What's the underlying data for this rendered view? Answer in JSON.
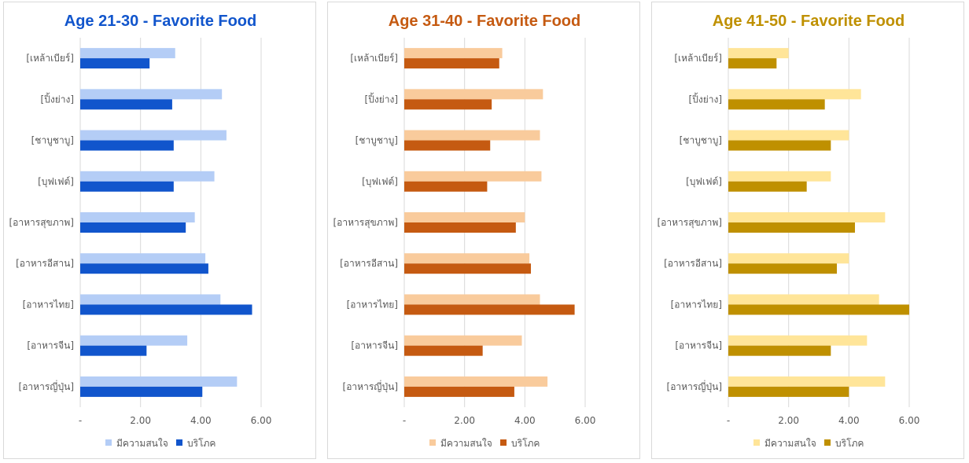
{
  "charts": [
    {
      "chart_data": {
        "type": "bar",
        "orientation": "horizontal",
        "title": "Age 21-30 - Favorite Food",
        "categories": [
          "[เหล้าเบียร์]",
          "[ปิ้งย่าง]",
          "[ชาบูชาบู]",
          "[บุฟเฟต์]",
          "[อาหารสุขภาพ]",
          "[อาหารอีสาน]",
          "[อาหารไทย]",
          "[อาหารจีน]",
          "[อาหารญี่ปุ่น]"
        ],
        "series": [
          {
            "name": "มีความสนใจ",
            "color": "#b4cdf6",
            "values": [
              3.15,
              4.7,
              4.85,
              4.45,
              3.8,
              4.15,
              4.65,
              3.55,
              5.2
            ]
          },
          {
            "name": "บริโภค",
            "color": "#1155cc",
            "values": [
              2.3,
              3.05,
              3.1,
              3.1,
              3.5,
              4.25,
              5.7,
              2.2,
              4.05
            ]
          }
        ],
        "xlim": [
          0,
          6
        ],
        "ticks": [
          "-",
          "2.00",
          "4.00",
          "6.00"
        ],
        "grid": true,
        "legend": "bottom"
      },
      "title_color": "#1155cc"
    },
    {
      "chart_data": {
        "type": "bar",
        "orientation": "horizontal",
        "title": "Age 31-40 - Favorite Food",
        "categories": [
          "[เหล้าเบียร์]",
          "[ปิ้งย่าง]",
          "[ชาบูชาบู]",
          "[บุฟเฟต์]",
          "[อาหารสุขภาพ]",
          "[อาหารอีสาน]",
          "[อาหารไทย]",
          "[อาหารจีน]",
          "[อาหารญี่ปุ่น]"
        ],
        "series": [
          {
            "name": "มีความสนใจ",
            "color": "#f9cb9c",
            "values": [
              3.25,
              4.6,
              4.5,
              4.55,
              4.0,
              4.15,
              4.5,
              3.9,
              4.75
            ]
          },
          {
            "name": "บริโภค",
            "color": "#c55a11",
            "values": [
              3.15,
              2.9,
              2.85,
              2.75,
              3.7,
              4.2,
              5.65,
              2.6,
              3.65
            ]
          }
        ],
        "xlim": [
          0,
          6
        ],
        "ticks": [
          "-",
          "2.00",
          "4.00",
          "6.00"
        ],
        "grid": true,
        "legend": "bottom"
      },
      "title_color": "#c55a11"
    },
    {
      "chart_data": {
        "type": "bar",
        "orientation": "horizontal",
        "title": "Age 41-50 - Favorite Food",
        "categories": [
          "[เหล้าเบียร์]",
          "[ปิ้งย่าง]",
          "[ชาบูชาบู]",
          "[บุฟเฟต์]",
          "[อาหารสุขภาพ]",
          "[อาหารอีสาน]",
          "[อาหารไทย]",
          "[อาหารจีน]",
          "[อาหารญี่ปุ่น]"
        ],
        "series": [
          {
            "name": "มีความสนใจ",
            "color": "#ffe599",
            "values": [
              2.0,
              4.4,
              4.0,
              3.4,
              5.2,
              4.0,
              5.0,
              4.6,
              5.2
            ]
          },
          {
            "name": "บริโภค",
            "color": "#bf9000",
            "values": [
              1.6,
              3.2,
              3.4,
              2.6,
              4.2,
              3.6,
              6.0,
              3.4,
              4.0
            ]
          }
        ],
        "xlim": [
          0,
          6
        ],
        "ticks": [
          "-",
          "2.00",
          "4.00",
          "6.00"
        ],
        "grid": true,
        "legend": "bottom"
      },
      "title_color": "#bf9000"
    }
  ]
}
